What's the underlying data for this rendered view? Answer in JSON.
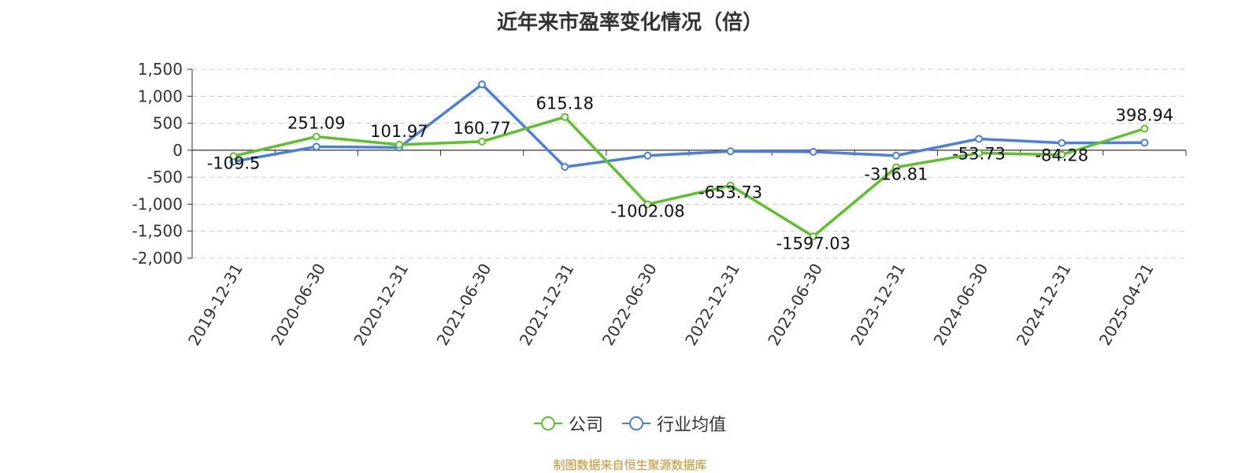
{
  "chart_data": {
    "type": "line",
    "title": "近年来市盈率变化情况（倍）",
    "categories": [
      "2019-12-31",
      "2020-06-30",
      "2020-12-31",
      "2021-06-30",
      "2021-12-31",
      "2022-06-30",
      "2022-12-31",
      "2023-06-30",
      "2023-12-31",
      "2024-06-30",
      "2024-12-31",
      "2025-04-21"
    ],
    "series": [
      {
        "name": "公司",
        "color": "#5cc12a",
        "values": [
          -109.5,
          251.09,
          101.97,
          160.77,
          615.18,
          -1002.08,
          -653.73,
          -1597.03,
          -316.81,
          -53.73,
          -84.28,
          398.94
        ]
      },
      {
        "name": "行业均值",
        "color": "#4a7fe0",
        "values": [
          -210,
          65,
          50,
          1220,
          -310,
          -100,
          -20,
          -30,
          -100,
          210,
          135,
          140
        ]
      }
    ],
    "data_labels": [
      "-109.5",
      "251.09",
      "101.97",
      "160.77",
      "615.18",
      "-1002.08",
      "-653.73",
      "-1597.03",
      "-316.81",
      "-53.73",
      "-84.28",
      "398.94"
    ],
    "y_ticks": [
      "1,500",
      "1,000",
      "500",
      "0",
      "-500",
      "-1,000",
      "-1,500",
      "-2,000"
    ],
    "ylim": [
      -2000,
      1500
    ],
    "grid": true,
    "legend_position": "bottom-center"
  },
  "source_note": "制图数据来自恒生聚源数据库"
}
